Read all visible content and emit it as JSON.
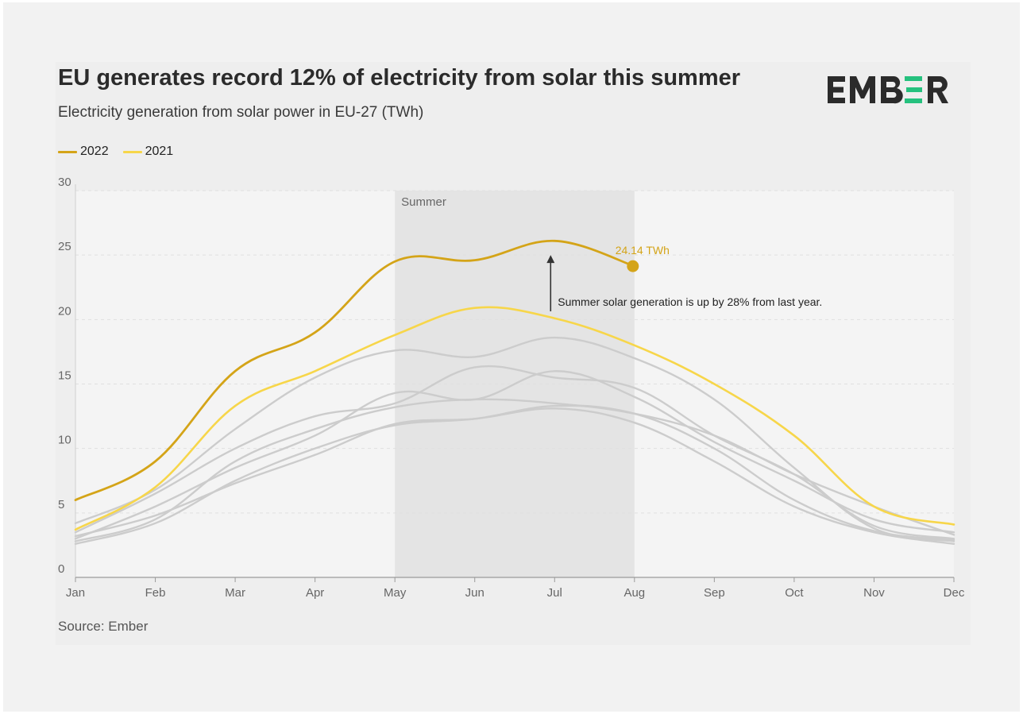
{
  "title": "EU generates record 12% of electricity from solar this summer",
  "subtitle": "Electricity generation from solar power in EU-27 (TWh)",
  "logo_text": "EMB≡R",
  "source": "Source: Ember",
  "legend": [
    {
      "label": "2022",
      "color": "#d4a418"
    },
    {
      "label": "2021",
      "color": "#f7d64a"
    }
  ],
  "colors": {
    "y2022": "#d4a418",
    "y2021": "#f7d64a",
    "history": "#cccccc",
    "summer_band": "#e4e4e4",
    "logo_dark": "#2b2b2b",
    "logo_accent": "#25c17e"
  },
  "chart_data": {
    "type": "line",
    "title": "EU generates record 12% of electricity from solar this summer",
    "subtitle": "Electricity generation from solar power in EU-27 (TWh)",
    "xlabel": "",
    "ylabel": "",
    "categories": [
      "Jan",
      "Feb",
      "Mar",
      "Apr",
      "May",
      "Jun",
      "Jul",
      "Aug",
      "Sep",
      "Oct",
      "Nov",
      "Dec"
    ],
    "ylim": [
      0,
      30
    ],
    "yticks": [
      0,
      5,
      10,
      15,
      20,
      25,
      30
    ],
    "grid": true,
    "legend_position": "top-left",
    "series": [
      {
        "name": "2022",
        "highlight": "y2022",
        "values": [
          6.0,
          9.0,
          16.0,
          19.0,
          24.5,
          24.6,
          26.1,
          24.14,
          null,
          null,
          null,
          null
        ]
      },
      {
        "name": "2021",
        "highlight": "y2021",
        "values": [
          3.7,
          7.0,
          13.3,
          16.0,
          18.8,
          20.9,
          20.1,
          18.0,
          15.0,
          11.0,
          5.5,
          4.1
        ]
      },
      {
        "values": [
          4.2,
          6.8,
          11.5,
          15.5,
          17.6,
          17.1,
          18.6,
          17.0,
          13.8,
          8.5,
          3.8,
          2.8
        ]
      },
      {
        "values": [
          3.5,
          6.5,
          10.0,
          12.5,
          13.5,
          16.3,
          15.5,
          14.7,
          11.0,
          8.0,
          4.0,
          3.0
        ]
      },
      {
        "values": [
          3.0,
          5.5,
          8.5,
          11.0,
          14.3,
          13.8,
          16.0,
          14.0,
          10.5,
          7.5,
          4.5,
          3.5
        ]
      },
      {
        "values": [
          2.8,
          4.5,
          9.0,
          11.5,
          13.2,
          13.8,
          13.5,
          12.7,
          11.0,
          8.0,
          5.5,
          3.3
        ]
      },
      {
        "values": [
          2.6,
          4.2,
          7.5,
          10.0,
          11.8,
          12.3,
          13.3,
          12.7,
          10.0,
          6.0,
          3.6,
          2.9
        ]
      },
      {
        "values": [
          3.2,
          4.8,
          7.3,
          9.5,
          11.9,
          12.3,
          13.1,
          12.0,
          9.0,
          5.5,
          3.5,
          2.6
        ]
      }
    ],
    "summer_band": {
      "label": "Summer",
      "from": "May",
      "to": "Aug"
    },
    "annotations": [
      {
        "series": "2022",
        "x": "Aug",
        "y": 24.14,
        "label": "24.14 TWh"
      },
      {
        "x": "Jul",
        "y_from": 21.5,
        "y_to": 25.0,
        "label": "Summer solar generation is up by 28% from last year."
      }
    ]
  }
}
